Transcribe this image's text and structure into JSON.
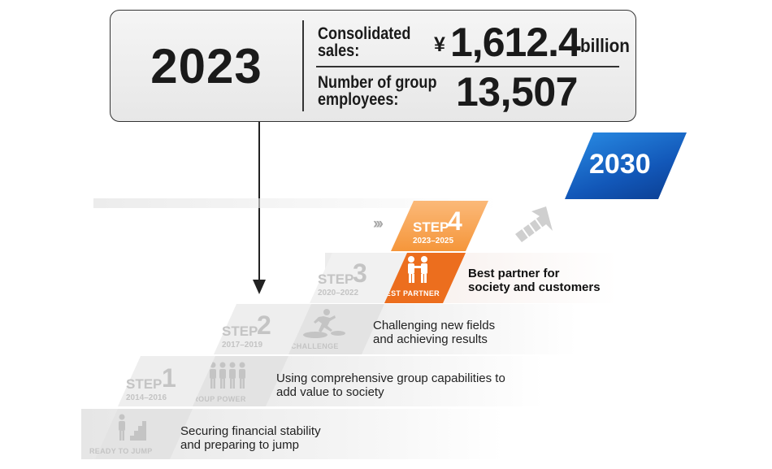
{
  "summary": {
    "year": "2023",
    "sales_label": "Consolidated sales:",
    "sales_currency": "¥",
    "sales_value": "1,612.4",
    "sales_unit": "billion",
    "employees_label": "Number of group employees:",
    "employees_value": "13,507"
  },
  "target_year": "2030",
  "steps": [
    {
      "word": "STEP",
      "num": "1",
      "years": "2014–2016",
      "tag": "READY TO JUMP",
      "description_lines": [
        "Securing financial stability",
        "and preparing to jump"
      ]
    },
    {
      "word": "STEP",
      "num": "2",
      "years": "2017–2019",
      "tag": "GROUP POWER",
      "description_lines": [
        "Using comprehensive group capabilities to",
        "add value to society"
      ]
    },
    {
      "word": "STEP",
      "num": "3",
      "years": "2020–2022",
      "tag": "CHALLENGE",
      "description_lines": [
        "Challenging new fields",
        "and achieving results"
      ]
    },
    {
      "word": "STEP",
      "num": "4",
      "years": "2023–2025",
      "tag": "BEST PARTNER",
      "description_lines": [
        "Best partner for",
        "society and customers"
      ]
    }
  ],
  "colors": {
    "orange": "#ec6e1e",
    "orange_light": "#f5963a",
    "blue": "#1257b8",
    "grey": "#c4c4c4"
  },
  "icons": [
    "chevrons-right-icon",
    "up-right-arrow-icon",
    "partners-icon",
    "jumping-person-icon",
    "group-people-icon",
    "person-stairs-icon"
  ]
}
